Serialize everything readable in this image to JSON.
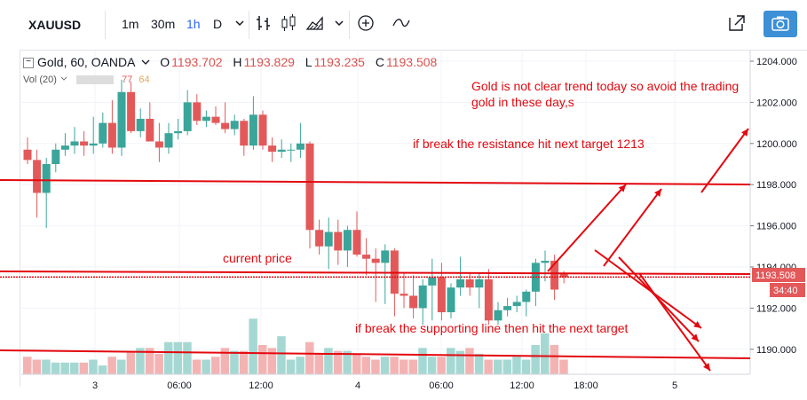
{
  "toolbar": {
    "symbol": "XAUUSD",
    "intervals": [
      "1m",
      "30m",
      "1h",
      "D"
    ],
    "active_interval": "1h"
  },
  "legend": {
    "instrument": "Gold, 60, OANDA",
    "o_label": "O",
    "o": "1193.702",
    "h_label": "H",
    "h": "1193.829",
    "l_label": "L",
    "l": "1193.235",
    "c_label": "C",
    "c": "1193.508",
    "volume_label": "Vol (20)",
    "volume_value": "77",
    "volume_ma": "64"
  },
  "annotations": {
    "note1": "Gold is not clear trend today so avoid the trading",
    "note2": "gold in these day,s",
    "note3": "if break the resistance hit next target 1213",
    "note4": "current price",
    "note5": "if break the supporting line then hit the next target"
  },
  "price_badge": "1193.508",
  "time_badge": "34:40",
  "colors": {
    "up": "#3aa59a",
    "down": "#e3595a",
    "vol_up": "#a6d8d3",
    "vol_down": "#f4b3b3",
    "annotation": "#e3090f"
  },
  "chart_data": {
    "type": "candlestick",
    "y_axis_ticks": [
      "1204.000",
      "1202.000",
      "1200.000",
      "1198.000",
      "1196.000",
      "1194.000",
      "1192.000",
      "1190.000"
    ],
    "x_axis_ticks": [
      "3",
      "06:00",
      "12:00",
      "4",
      "06:00",
      "12:00",
      "18:00",
      "5"
    ],
    "ylim": [
      1189,
      1204.5
    ],
    "candles": [
      [
        1199.7,
        1200.3,
        1199.0,
        1199.2
      ],
      [
        1199.2,
        1199.7,
        1196.4,
        1197.6
      ],
      [
        1197.6,
        1199.3,
        1195.9,
        1199.0
      ],
      [
        1199.0,
        1200.0,
        1198.6,
        1199.7
      ],
      [
        1199.7,
        1200.5,
        1199.4,
        1199.9
      ],
      [
        1199.9,
        1200.8,
        1199.5,
        1200.1
      ],
      [
        1200.1,
        1200.6,
        1199.4,
        1199.9
      ],
      [
        1199.9,
        1201.3,
        1199.5,
        1200.0
      ],
      [
        1200.0,
        1201.5,
        1199.8,
        1201.0
      ],
      [
        1201.0,
        1202.1,
        1199.5,
        1199.8
      ],
      [
        1199.8,
        1203.1,
        1199.4,
        1202.5
      ],
      [
        1202.5,
        1203.0,
        1200.5,
        1200.6
      ],
      [
        1200.6,
        1201.7,
        1200.3,
        1201.2
      ],
      [
        1201.2,
        1202.0,
        1200.1,
        1200.1
      ],
      [
        1200.1,
        1201.0,
        1199.1,
        1199.8
      ],
      [
        1199.8,
        1201.0,
        1199.5,
        1200.5
      ],
      [
        1200.5,
        1201.2,
        1200.2,
        1200.6
      ],
      [
        1200.6,
        1202.6,
        1200.4,
        1202.0
      ],
      [
        1202.0,
        1202.4,
        1200.9,
        1201.1
      ],
      [
        1201.1,
        1201.6,
        1200.8,
        1201.3
      ],
      [
        1201.3,
        1201.8,
        1200.9,
        1201.0
      ],
      [
        1201.0,
        1202.0,
        1200.5,
        1200.7
      ],
      [
        1200.7,
        1201.4,
        1200.4,
        1201.1
      ],
      [
        1201.1,
        1201.2,
        1199.4,
        1199.9
      ],
      [
        1199.9,
        1202.3,
        1199.7,
        1201.4
      ],
      [
        1201.4,
        1201.6,
        1199.7,
        1199.9
      ],
      [
        1199.9,
        1200.3,
        1199.1,
        1199.6
      ],
      [
        1199.6,
        1200.2,
        1199.3,
        1199.7
      ],
      [
        1199.7,
        1200.0,
        1199.1,
        1199.7
      ],
      [
        1199.7,
        1201.0,
        1199.3,
        1200.0
      ],
      [
        1200.0,
        1200.1,
        1194.9,
        1195.8
      ],
      [
        1195.8,
        1196.3,
        1194.6,
        1195.0
      ],
      [
        1195.0,
        1196.4,
        1193.9,
        1195.7
      ],
      [
        1195.7,
        1196.3,
        1194.1,
        1194.8
      ],
      [
        1194.8,
        1196.0,
        1194.0,
        1195.8
      ],
      [
        1195.8,
        1196.7,
        1194.5,
        1194.6
      ],
      [
        1194.6,
        1195.4,
        1193.6,
        1194.4
      ],
      [
        1194.4,
        1194.9,
        1192.3,
        1194.2
      ],
      [
        1194.2,
        1195.1,
        1192.2,
        1194.8
      ],
      [
        1194.8,
        1194.9,
        1191.6,
        1192.7
      ],
      [
        1192.7,
        1193.7,
        1192.0,
        1192.6
      ],
      [
        1192.6,
        1193.6,
        1191.5,
        1192.0
      ],
      [
        1192.0,
        1193.4,
        1191.2,
        1193.1
      ],
      [
        1193.1,
        1194.4,
        1191.4,
        1193.5
      ],
      [
        1193.5,
        1194.2,
        1191.4,
        1191.8
      ],
      [
        1191.8,
        1193.2,
        1191.5,
        1193.0
      ],
      [
        1193.0,
        1194.5,
        1192.6,
        1193.4
      ],
      [
        1193.4,
        1193.7,
        1192.6,
        1193.0
      ],
      [
        1193.0,
        1193.7,
        1192.0,
        1193.4
      ],
      [
        1193.4,
        1193.9,
        1191.2,
        1191.4
      ],
      [
        1191.4,
        1192.3,
        1191.2,
        1191.9
      ],
      [
        1191.9,
        1192.5,
        1191.6,
        1192.1
      ],
      [
        1192.1,
        1192.6,
        1191.8,
        1192.3
      ],
      [
        1192.3,
        1192.9,
        1191.6,
        1192.8
      ],
      [
        1192.8,
        1194.4,
        1192.1,
        1194.2
      ],
      [
        1194.2,
        1194.8,
        1193.3,
        1194.3
      ],
      [
        1194.3,
        1194.6,
        1192.4,
        1192.9
      ],
      [
        1193.7,
        1193.8,
        1193.2,
        1193.5
      ]
    ],
    "volume": [
      6,
      5,
      5,
      4,
      4,
      4,
      4,
      5,
      3,
      6,
      5,
      8,
      9,
      9,
      7,
      11,
      11,
      11,
      5,
      5,
      6,
      9,
      8,
      8,
      19,
      10,
      9,
      13,
      5,
      6,
      11,
      7,
      9,
      8,
      8,
      7,
      6,
      5,
      6,
      6,
      5,
      5,
      9,
      6,
      6,
      9,
      8,
      9,
      7,
      5,
      5,
      5,
      6,
      5,
      10,
      14,
      10,
      5
    ],
    "resistance_level": 1198.0,
    "current_price": 1193.508,
    "support_level": 1189.4
  }
}
